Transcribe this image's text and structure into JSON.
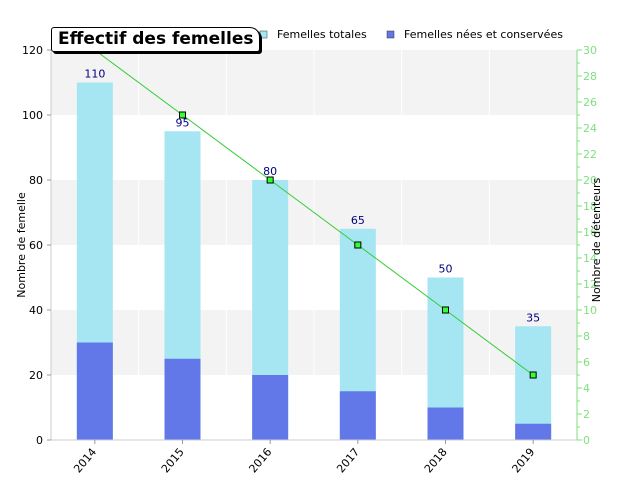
{
  "chart_data": {
    "type": "bar",
    "title": "Effectif des femelles",
    "categories": [
      "2014",
      "2015",
      "2016",
      "2017",
      "2018",
      "2019"
    ],
    "series": [
      {
        "name": "Femelles totales",
        "type": "bar",
        "axis": "left",
        "values": [
          110,
          95,
          80,
          65,
          50,
          35
        ],
        "color": "#a6e6f3",
        "data_labels": true
      },
      {
        "name": "Femelles nées et conservées",
        "type": "bar",
        "axis": "left",
        "values": [
          30,
          25,
          20,
          15,
          10,
          5
        ],
        "color": "#6378e8"
      },
      {
        "type": "line",
        "axis": "right",
        "values": [
          30,
          25,
          20,
          15,
          10,
          5
        ],
        "color": "#33cc33",
        "marker_color": "#33ff33"
      }
    ],
    "ylabel": "Nombre de femelle",
    "ylim": [
      0,
      120
    ],
    "yticks": [
      0,
      20,
      40,
      60,
      80,
      100,
      120
    ],
    "y2label": "Nombre de détenteurs",
    "y2lim": [
      0,
      30
    ],
    "y2ticks": [
      0,
      2,
      4,
      6,
      8,
      10,
      12,
      14,
      16,
      18,
      20,
      22,
      24,
      26,
      28,
      30
    ],
    "y2_color": "#7fdf7f",
    "grid": "horizontal-bands",
    "legend_position": "top"
  }
}
